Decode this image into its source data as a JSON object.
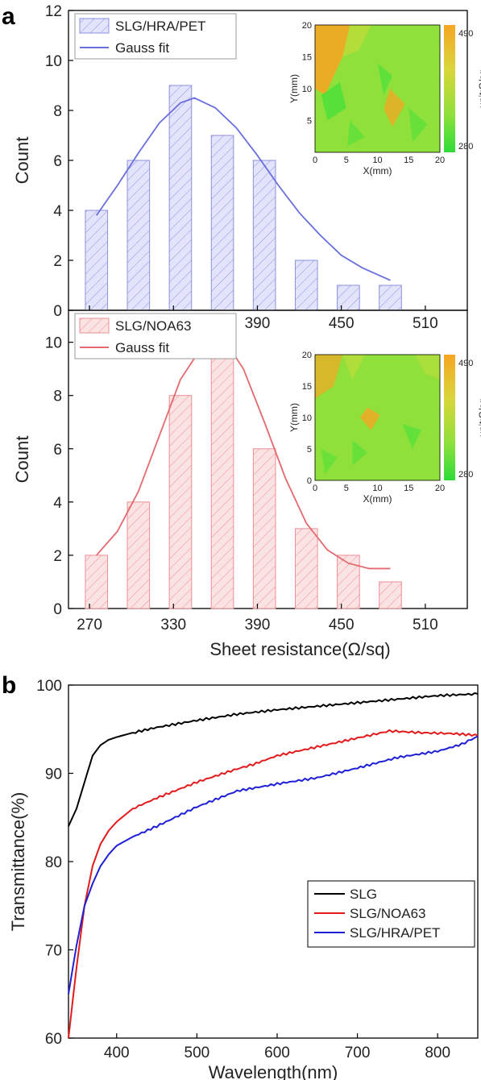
{
  "panels": {
    "a": "a",
    "b": "b"
  },
  "chart_data": [
    {
      "type": "bar",
      "panel": "a",
      "categories": [
        275,
        305,
        335,
        365,
        395,
        425,
        455,
        485
      ],
      "series": [
        {
          "name": "SLG/HRA/PET",
          "values": [
            4,
            6,
            9,
            7,
            6,
            2,
            1,
            1
          ]
        }
      ],
      "fit": {
        "name": "Gauss fit",
        "x": [
          275,
          290,
          305,
          320,
          335,
          345,
          360,
          375,
          390,
          405,
          420,
          435,
          450,
          465,
          485
        ],
        "y": [
          3.8,
          5.0,
          6.3,
          7.5,
          8.3,
          8.5,
          8.1,
          7.3,
          6.2,
          5.0,
          3.9,
          3.0,
          2.2,
          1.7,
          1.2
        ]
      },
      "xticks": [
        "270",
        "330",
        "390",
        "450",
        "510"
      ],
      "yticks": [
        "0",
        "2",
        "4",
        "6",
        "8",
        "10",
        "12"
      ],
      "ylabel": "Count",
      "xlim": [
        255,
        540
      ],
      "ylim": [
        0,
        12
      ],
      "legend_position": "top-left",
      "inset": {
        "type": "heatmap",
        "xlabel": "X(mm)",
        "ylabel": "Y(mm)",
        "xticks": [
          "0",
          "5",
          "10",
          "15",
          "20"
        ],
        "yticks": [
          "5",
          "10",
          "15",
          "20"
        ],
        "colorbar_ticks": [
          "490",
          "280"
        ],
        "colorbar_label": "unit:Ω/sq",
        "colors": {
          "low": "#3fe03a",
          "mid": "#8fe03a",
          "high": "#f5a623"
        }
      }
    },
    {
      "type": "bar",
      "panel": "a",
      "categories": [
        275,
        305,
        335,
        365,
        395,
        425,
        455,
        485
      ],
      "series": [
        {
          "name": "SLG/NOA63",
          "values": [
            2,
            4,
            8,
            10,
            6,
            3,
            2,
            1
          ]
        }
      ],
      "fit": {
        "name": "Gauss fit",
        "x": [
          275,
          290,
          305,
          320,
          335,
          350,
          360,
          370,
          380,
          395,
          410,
          425,
          440,
          455,
          470,
          485
        ],
        "y": [
          2.0,
          2.9,
          4.4,
          6.5,
          8.6,
          9.8,
          10.0,
          9.8,
          9.0,
          7.0,
          4.9,
          3.2,
          2.2,
          1.7,
          1.5,
          1.5
        ]
      },
      "xticks": [
        "270",
        "330",
        "390",
        "450",
        "510"
      ],
      "yticks": [
        "0",
        "2",
        "4",
        "6",
        "8",
        "10"
      ],
      "xlabel": "Sheet resistance(Ω/sq)",
      "ylabel": "Count",
      "xlim": [
        255,
        540
      ],
      "ylim": [
        0,
        11.2
      ],
      "legend_position": "top-left",
      "inset": {
        "type": "heatmap",
        "xlabel": "X(mm)",
        "ylabel": "Y(mm)",
        "xticks": [
          "0",
          "5",
          "10",
          "15",
          "20"
        ],
        "yticks": [
          "0",
          "5",
          "10",
          "15",
          "20"
        ],
        "colorbar_ticks": [
          "490",
          "280"
        ],
        "colorbar_label": "unit:Ω/sq",
        "colors": {
          "low": "#3fe03a",
          "mid": "#8fe03a",
          "high": "#f5a623"
        }
      }
    },
    {
      "type": "line",
      "panel": "b",
      "xlabel": "Wavelength(nm)",
      "ylabel": "Transmittance(%)",
      "xlim": [
        340,
        850
      ],
      "ylim": [
        60,
        100
      ],
      "xticks": [
        "400",
        "500",
        "600",
        "700",
        "800"
      ],
      "yticks": [
        "60",
        "70",
        "80",
        "90",
        "100"
      ],
      "legend_position": "center-right",
      "series": [
        {
          "name": "SLG",
          "color": "#000000",
          "x": [
            340,
            350,
            360,
            370,
            380,
            390,
            400,
            420,
            450,
            500,
            550,
            600,
            650,
            700,
            750,
            800,
            850
          ],
          "y": [
            84.0,
            86.0,
            89.0,
            92.0,
            93.2,
            93.8,
            94.1,
            94.6,
            95.2,
            96.0,
            96.7,
            97.2,
            97.6,
            98.0,
            98.4,
            98.8,
            99.0
          ]
        },
        {
          "name": "SLG/NOA63",
          "color": "#e31a1c",
          "x": [
            340,
            350,
            360,
            370,
            380,
            390,
            400,
            420,
            450,
            500,
            550,
            570,
            600,
            650,
            700,
            740,
            780,
            820,
            850
          ],
          "y": [
            60.0,
            68.0,
            75.0,
            79.5,
            82.0,
            83.5,
            84.5,
            86.0,
            87.2,
            89.0,
            90.5,
            91.0,
            92.0,
            93.0,
            94.0,
            94.8,
            94.6,
            94.5,
            94.3
          ]
        },
        {
          "name": "SLG/HRA/PET",
          "color": "#1f1fd6",
          "x": [
            340,
            350,
            360,
            370,
            380,
            390,
            400,
            420,
            450,
            500,
            550,
            600,
            650,
            700,
            750,
            800,
            830,
            850
          ],
          "y": [
            65.0,
            70.5,
            75.0,
            77.5,
            79.5,
            80.8,
            81.8,
            82.8,
            84.0,
            86.2,
            88.0,
            88.8,
            89.5,
            90.6,
            91.8,
            92.5,
            93.3,
            94.2
          ]
        }
      ]
    }
  ]
}
